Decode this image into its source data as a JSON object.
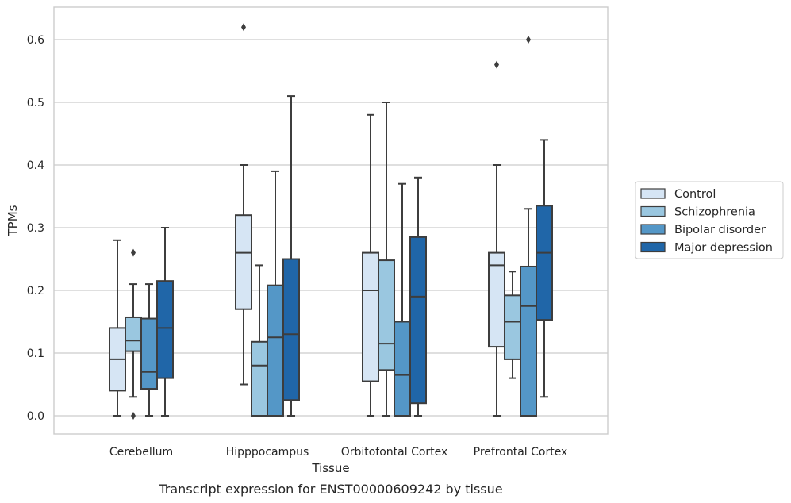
{
  "caption": "Transcript expression for ENST00000609242 by tissue",
  "chart_data": {
    "type": "box",
    "xlabel": "Tissue",
    "ylabel": "TPMs",
    "ylim": [
      -0.03,
      0.655
    ],
    "yticks": [
      "0.0",
      "0.1",
      "0.2",
      "0.3",
      "0.4",
      "0.5",
      "0.6"
    ],
    "ytick_values": [
      0.0,
      0.1,
      0.2,
      0.3,
      0.4,
      0.5,
      0.6
    ],
    "grid": "horizontal",
    "legend_position": "right",
    "categories": [
      "Cerebellum",
      "Hipppocampus",
      "Orbitofontal Cortex",
      "Prefrontal Cortex"
    ],
    "series": [
      {
        "name": "Control",
        "color": "#d6e5f4",
        "boxes": [
          {
            "whislo": 0.0,
            "q1": 0.04,
            "med": 0.09,
            "q3": 0.14,
            "whishi": 0.28,
            "fliers": []
          },
          {
            "whislo": 0.05,
            "q1": 0.17,
            "med": 0.26,
            "q3": 0.32,
            "whishi": 0.4,
            "fliers": [
              0.62
            ]
          },
          {
            "whislo": 0.0,
            "q1": 0.055,
            "med": 0.2,
            "q3": 0.26,
            "whishi": 0.48,
            "fliers": []
          },
          {
            "whislo": 0.0,
            "q1": 0.11,
            "med": 0.24,
            "q3": 0.26,
            "whishi": 0.4,
            "fliers": [
              0.56
            ]
          }
        ]
      },
      {
        "name": "Schizophrenia",
        "color": "#9ac7e0",
        "boxes": [
          {
            "whislo": 0.03,
            "q1": 0.103,
            "med": 0.12,
            "q3": 0.157,
            "whishi": 0.21,
            "fliers": [
              0.0,
              0.26
            ]
          },
          {
            "whislo": 0.0,
            "q1": 0.0,
            "med": 0.08,
            "q3": 0.118,
            "whishi": 0.24,
            "fliers": []
          },
          {
            "whislo": 0.0,
            "q1": 0.073,
            "med": 0.115,
            "q3": 0.248,
            "whishi": 0.5,
            "fliers": []
          },
          {
            "whislo": 0.06,
            "q1": 0.09,
            "med": 0.15,
            "q3": 0.192,
            "whishi": 0.23,
            "fliers": []
          }
        ]
      },
      {
        "name": "Bipolar disorder",
        "color": "#5497c7",
        "boxes": [
          {
            "whislo": 0.0,
            "q1": 0.043,
            "med": 0.07,
            "q3": 0.155,
            "whishi": 0.21,
            "fliers": []
          },
          {
            "whislo": 0.0,
            "q1": 0.0,
            "med": 0.125,
            "q3": 0.208,
            "whishi": 0.39,
            "fliers": []
          },
          {
            "whislo": 0.0,
            "q1": 0.0,
            "med": 0.065,
            "q3": 0.15,
            "whishi": 0.37,
            "fliers": []
          },
          {
            "whislo": 0.0,
            "q1": 0.0,
            "med": 0.175,
            "q3": 0.238,
            "whishi": 0.33,
            "fliers": [
              0.6
            ]
          }
        ]
      },
      {
        "name": "Major depression",
        "color": "#2066a8",
        "boxes": [
          {
            "whislo": 0.0,
            "q1": 0.06,
            "med": 0.14,
            "q3": 0.215,
            "whishi": 0.3,
            "fliers": []
          },
          {
            "whislo": 0.0,
            "q1": 0.025,
            "med": 0.13,
            "q3": 0.25,
            "whishi": 0.51,
            "fliers": []
          },
          {
            "whislo": 0.0,
            "q1": 0.02,
            "med": 0.19,
            "q3": 0.285,
            "whishi": 0.38,
            "fliers": []
          },
          {
            "whislo": 0.03,
            "q1": 0.153,
            "med": 0.26,
            "q3": 0.335,
            "whishi": 0.44,
            "fliers": []
          }
        ]
      }
    ]
  }
}
